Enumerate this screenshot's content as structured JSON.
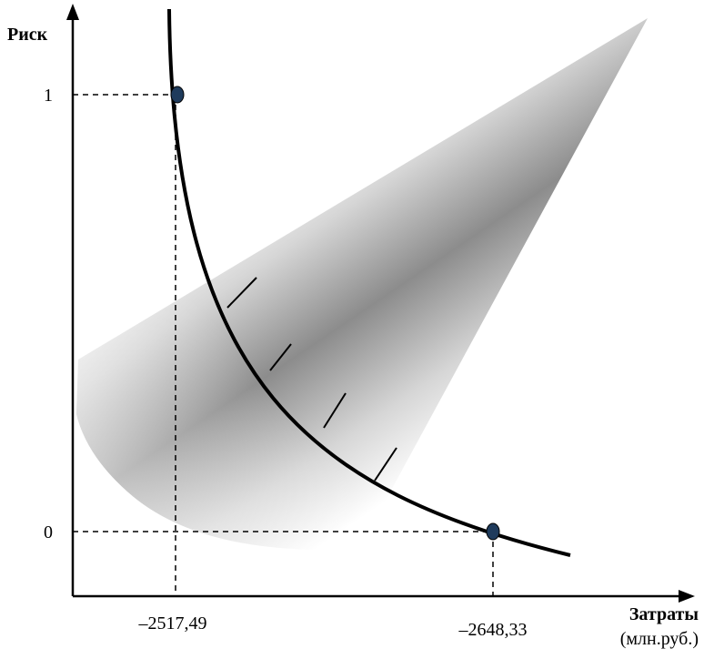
{
  "axes": {
    "y_label": "Риск",
    "x_label": "Затраты",
    "x_unit": "(млн.руб.)"
  },
  "ticks": {
    "y_top": "1",
    "y_bottom": "0",
    "x_left": "–2517,49",
    "x_right": "–2648,33"
  },
  "colors": {
    "curve": "#000000",
    "point_fill": "#1f3b5c",
    "cone_dark": "#8a8a8a",
    "dashed": "#000000"
  }
}
